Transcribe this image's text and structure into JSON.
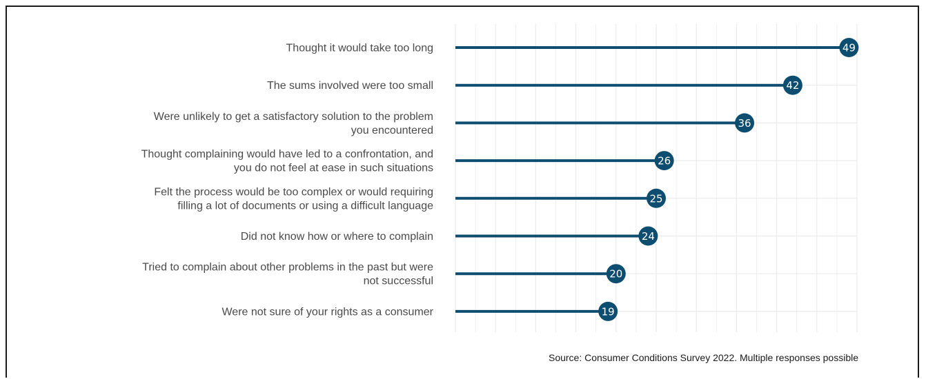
{
  "chart_data": {
    "type": "lollipop",
    "categories": [
      [
        "Thought it would take too long"
      ],
      [
        "The sums involved were too small"
      ],
      [
        "Were unlikely to get a satisfactory solution to the problem",
        "you encountered"
      ],
      [
        "Thought complaining would have led to a confrontation, and",
        "you do not feel at ease in such situations"
      ],
      [
        "Felt the process would be too complex or would requiring",
        "filling a lot of documents or using a difficult language"
      ],
      [
        "Did not know how or where to complain"
      ],
      [
        "Tried to complain about other problems in the past but were",
        "not successful"
      ],
      [
        "Were not sure of your rights as a consumer"
      ]
    ],
    "values": [
      49,
      42,
      36,
      26,
      25,
      24,
      20,
      19
    ],
    "xlim": [
      0,
      50
    ],
    "grid": true,
    "colors": {
      "stem": "#0d4d70",
      "dot": "#0d4d70",
      "grid": "#ebebeb",
      "label": "#4a4a4a"
    }
  },
  "source": "Source: Consumer Conditions Survey 2022. Multiple responses possible"
}
